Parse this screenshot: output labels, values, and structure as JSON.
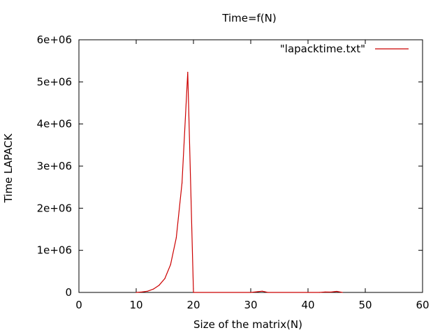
{
  "chart_data": {
    "type": "line",
    "title": "Time=f(N)",
    "xlabel": "Size of the matrix(N)",
    "ylabel": "Time LAPACK",
    "xlim": [
      0,
      60
    ],
    "ylim": [
      0,
      6000000
    ],
    "x_ticks": [
      0,
      10,
      20,
      30,
      40,
      50,
      60
    ],
    "x_tick_labels": [
      "0",
      "10",
      "20",
      "30",
      "40",
      "50",
      "60"
    ],
    "y_ticks": [
      0,
      1000000,
      2000000,
      3000000,
      4000000,
      5000000,
      6000000
    ],
    "y_tick_labels": [
      "0",
      "1e+06",
      "2e+06",
      "3e+06",
      "4e+06",
      "5e+06",
      "6e+06"
    ],
    "grid": false,
    "legend_position": "top-right",
    "series": [
      {
        "name": "\"lapacktime.txt\"",
        "color": "#cc0000",
        "x": [
          10,
          11,
          12,
          13,
          14,
          15,
          16,
          17,
          18,
          19,
          20,
          30,
          31,
          32,
          33,
          42,
          43,
          44,
          45,
          46
        ],
        "y": [
          0,
          10000,
          30000,
          80000,
          170000,
          330000,
          660000,
          1300000,
          2600000,
          5230000,
          0,
          0,
          15000,
          30000,
          0,
          0,
          10000,
          8000,
          25000,
          0
        ]
      }
    ]
  }
}
